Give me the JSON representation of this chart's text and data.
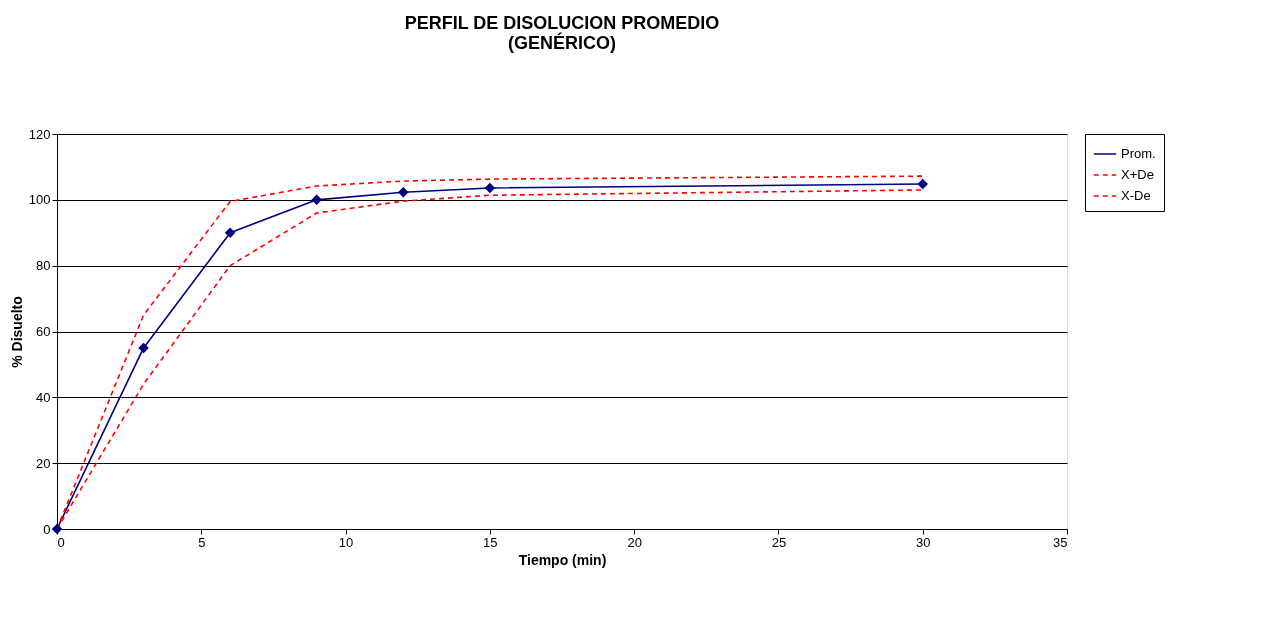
{
  "chart_data": {
    "type": "line",
    "title": [
      "PERFIL DE DISOLUCION PROMEDIO",
      "(GENÉRICO)"
    ],
    "xlabel": "Tiempo (min)",
    "ylabel": "% Disuelto",
    "x": [
      0,
      3,
      6,
      9,
      12,
      15,
      30
    ],
    "series": [
      {
        "name": "Prom.",
        "color": "#000080",
        "marker": "diamond",
        "line_style": "solid",
        "values": [
          0,
          55,
          90,
          100,
          102.3,
          103.6,
          104.8
        ]
      },
      {
        "name": "X+De",
        "color": "#ff0000",
        "marker": "none",
        "line_style": "dashed",
        "values": [
          0,
          65,
          99.5,
          104.2,
          105.7,
          106.3,
          107.2
        ]
      },
      {
        "name": "X-De",
        "color": "#ff0000",
        "marker": "none",
        "line_style": "dashed",
        "values": [
          0,
          44,
          80,
          96,
          99.6,
          101.4,
          103
        ]
      }
    ],
    "xlim": [
      0,
      35
    ],
    "xticks": [
      0,
      5,
      10,
      15,
      20,
      25,
      30,
      35
    ],
    "ylim": [
      0,
      120
    ],
    "yticks": [
      0,
      20,
      40,
      60,
      80,
      100,
      120
    ],
    "grid": "y",
    "legend": "right"
  }
}
